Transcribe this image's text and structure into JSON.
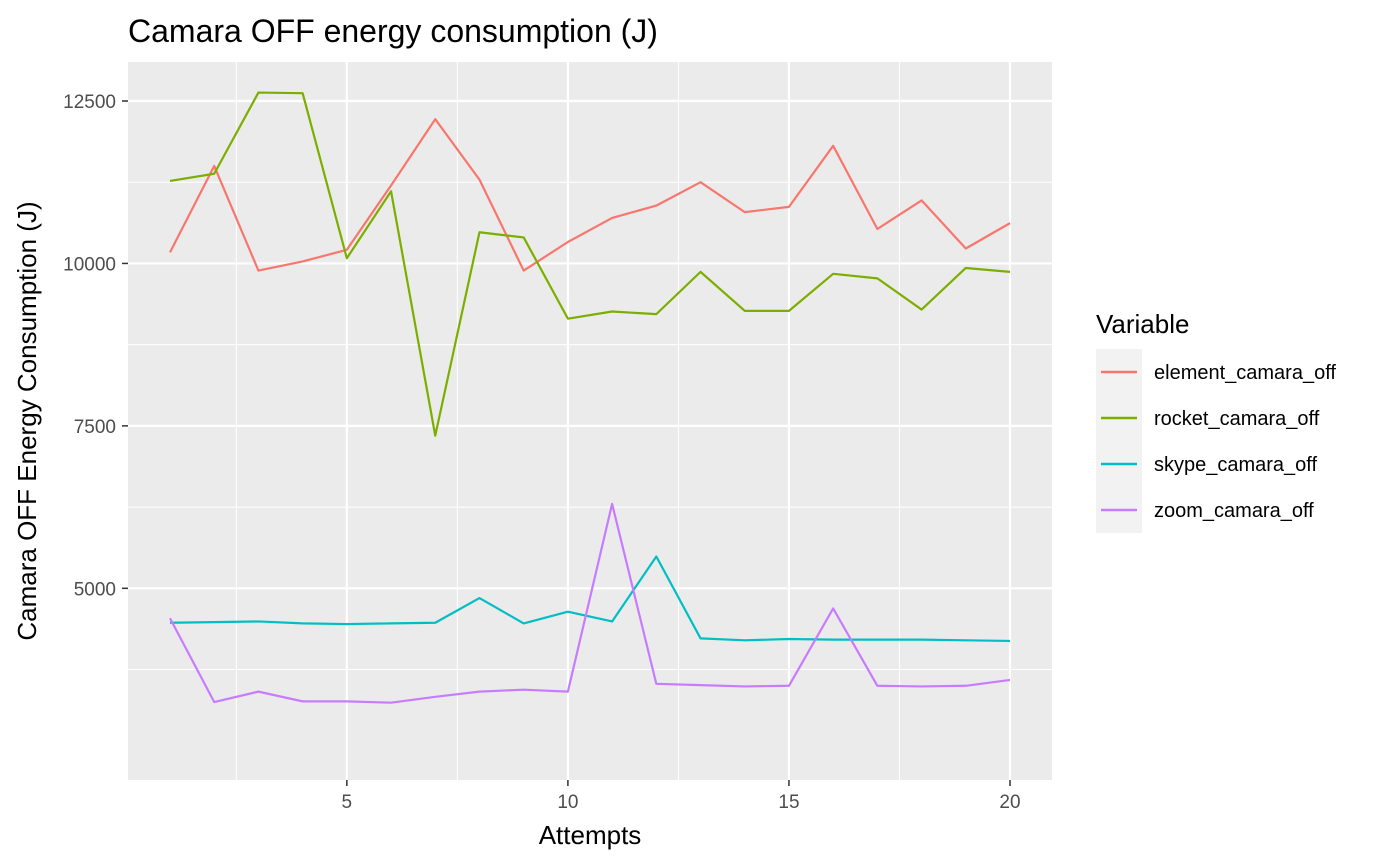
{
  "chart_data": {
    "type": "line",
    "title": "Camara OFF energy consumption (J)",
    "xlabel": "Attempts",
    "ylabel": "Camara OFF Energy Consumption (J)",
    "xlim": [
      0.05,
      20.95
    ],
    "ylim": [
      2050,
      13100
    ],
    "x_ticks": [
      5,
      10,
      15,
      20
    ],
    "y_ticks": [
      5000,
      7500,
      10000,
      12500
    ],
    "x_minor": [
      2.5,
      7.5,
      12.5,
      17.5
    ],
    "y_minor": [
      3750,
      6250,
      8750,
      11250
    ],
    "grid": true,
    "legend": {
      "title": "Variable",
      "position": "right"
    },
    "x": [
      1,
      2,
      3,
      4,
      5,
      6,
      7,
      8,
      9,
      10,
      11,
      12,
      13,
      14,
      15,
      16,
      17,
      18,
      19,
      20
    ],
    "series": [
      {
        "name": "element_camara_off",
        "color": "#F8766D",
        "values": [
          10170,
          11500,
          9890,
          10030,
          10210,
          11200,
          12220,
          11290,
          9890,
          10330,
          10700,
          10890,
          11250,
          10790,
          10870,
          11810,
          10530,
          10970,
          10230,
          10620
        ]
      },
      {
        "name": "rocket_camara_off",
        "color": "#7CAE00",
        "values": [
          11270,
          11380,
          12630,
          12620,
          10080,
          11110,
          7350,
          10480,
          10400,
          9150,
          9260,
          9220,
          9870,
          9270,
          9270,
          9840,
          9770,
          9290,
          9930,
          9870
        ]
      },
      {
        "name": "skype_camara_off",
        "color": "#00BFC4",
        "values": [
          4470,
          4480,
          4490,
          4460,
          4450,
          4460,
          4470,
          4850,
          4460,
          4640,
          4490,
          5490,
          4230,
          4200,
          4220,
          4210,
          4210,
          4210,
          4200,
          4190
        ]
      },
      {
        "name": "zoom_camara_off",
        "color": "#C77CFF",
        "values": [
          4540,
          3250,
          3410,
          3260,
          3260,
          3240,
          3330,
          3410,
          3440,
          3410,
          6300,
          3530,
          3510,
          3490,
          3500,
          4690,
          3500,
          3490,
          3500,
          3590
        ]
      }
    ]
  }
}
